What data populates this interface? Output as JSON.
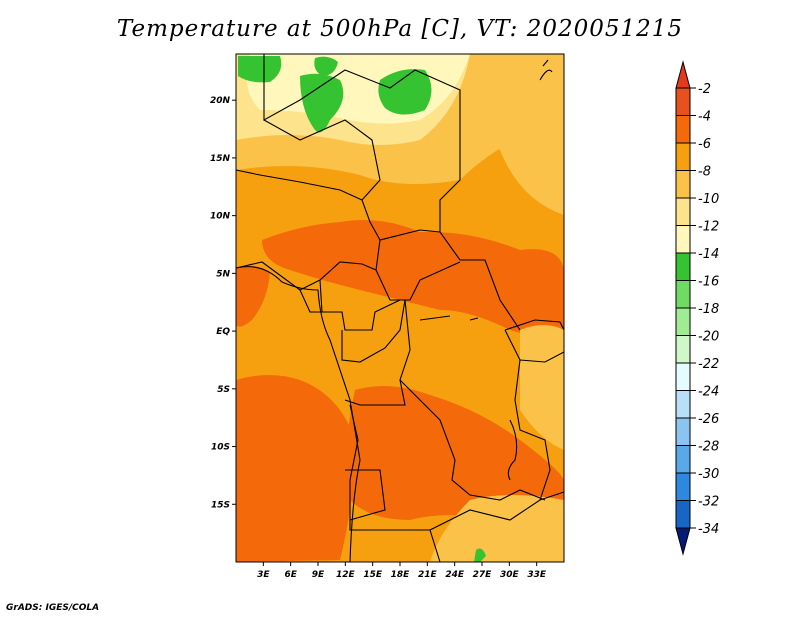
{
  "title": "Temperature at 500hPa [C], VT: 2020051215",
  "footer": "GrADS: IGES/COLA",
  "map": {
    "variable": "Temperature at 500hPa",
    "units": "C",
    "valid_time": "2020051215",
    "lon_range": [
      0,
      36
    ],
    "lat_range": [
      -20,
      24
    ],
    "lat_ticks": [
      {
        "value": 20,
        "label": "20N"
      },
      {
        "value": 15,
        "label": "15N"
      },
      {
        "value": 10,
        "label": "10N"
      },
      {
        "value": 5,
        "label": "5N"
      },
      {
        "value": 0,
        "label": "EQ"
      },
      {
        "value": -5,
        "label": "5S"
      },
      {
        "value": -10,
        "label": "10S"
      },
      {
        "value": -15,
        "label": "15S"
      }
    ],
    "lon_ticks": [
      {
        "value": 3,
        "label": "3E"
      },
      {
        "value": 6,
        "label": "6E"
      },
      {
        "value": 9,
        "label": "9E"
      },
      {
        "value": 12,
        "label": "12E"
      },
      {
        "value": 15,
        "label": "15E"
      },
      {
        "value": 18,
        "label": "18E"
      },
      {
        "value": 21,
        "label": "21E"
      },
      {
        "value": 24,
        "label": "24E"
      },
      {
        "value": 27,
        "label": "27E"
      },
      {
        "value": 30,
        "label": "30E"
      },
      {
        "value": 33,
        "label": "33E"
      }
    ]
  },
  "colorbar": {
    "levels": [
      {
        "label": "-2",
        "color": "#e8501e"
      },
      {
        "label": "-4",
        "color": "#f46a0a"
      },
      {
        "label": "-6",
        "color": "#f7a00f"
      },
      {
        "label": "-8",
        "color": "#fbc24a"
      },
      {
        "label": "-10",
        "color": "#fde38c"
      },
      {
        "label": "-12",
        "color": "#fff7bc"
      },
      {
        "label": "-14",
        "color": "#36c331"
      },
      {
        "label": "-16",
        "color": "#6fdb64"
      },
      {
        "label": "-18",
        "color": "#9fec94"
      },
      {
        "label": "-20",
        "color": "#cff8c8"
      },
      {
        "label": "-22",
        "color": "#e6fbfd"
      },
      {
        "label": "-24",
        "color": "#b8dff8"
      },
      {
        "label": "-26",
        "color": "#8cc4f1"
      },
      {
        "label": "-28",
        "color": "#5aa7ea"
      },
      {
        "label": "-30",
        "color": "#2f88df"
      },
      {
        "label": "-32",
        "color": "#1766c6"
      },
      {
        "label": "-34",
        "color": "#0a43a2"
      }
    ],
    "top_color": "#e33a1b",
    "bottom_color": "#061a78"
  },
  "colors": {
    "land_base": "#f7a00f",
    "warm": "#f46a0a",
    "cool": "#fde38c",
    "coolest": "#fff7bc",
    "green": "#36c331"
  }
}
